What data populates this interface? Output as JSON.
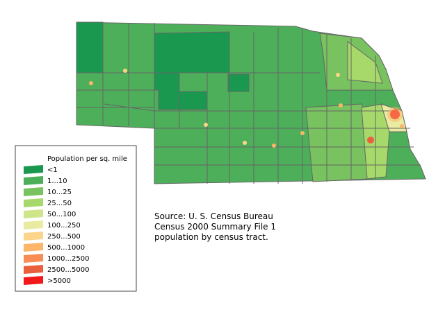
{
  "legend": {
    "title": "Population per sq. mile",
    "items": [
      {
        "label": "<1",
        "color": "#1a9850"
      },
      {
        "label": "1...10",
        "color": "#4daf5a"
      },
      {
        "label": "10...25",
        "color": "#78c25f"
      },
      {
        "label": "25...50",
        "color": "#a6d96a"
      },
      {
        "label": "50...100",
        "color": "#cfe58a"
      },
      {
        "label": "100...250",
        "color": "#e9eba0"
      },
      {
        "label": "250...500",
        "color": "#fdd58a"
      },
      {
        "label": "500...1000",
        "color": "#fdb46b"
      },
      {
        "label": "1000...2500",
        "color": "#f88c55"
      },
      {
        "label": "2500...5000",
        "color": "#e8603c"
      },
      {
        "label": ">5000",
        "color": "#f01a1a"
      }
    ]
  },
  "source": {
    "lines": [
      "Source: U. S. Census Bureau",
      "Census 2000 Summary File 1",
      "population by census tract."
    ]
  }
}
